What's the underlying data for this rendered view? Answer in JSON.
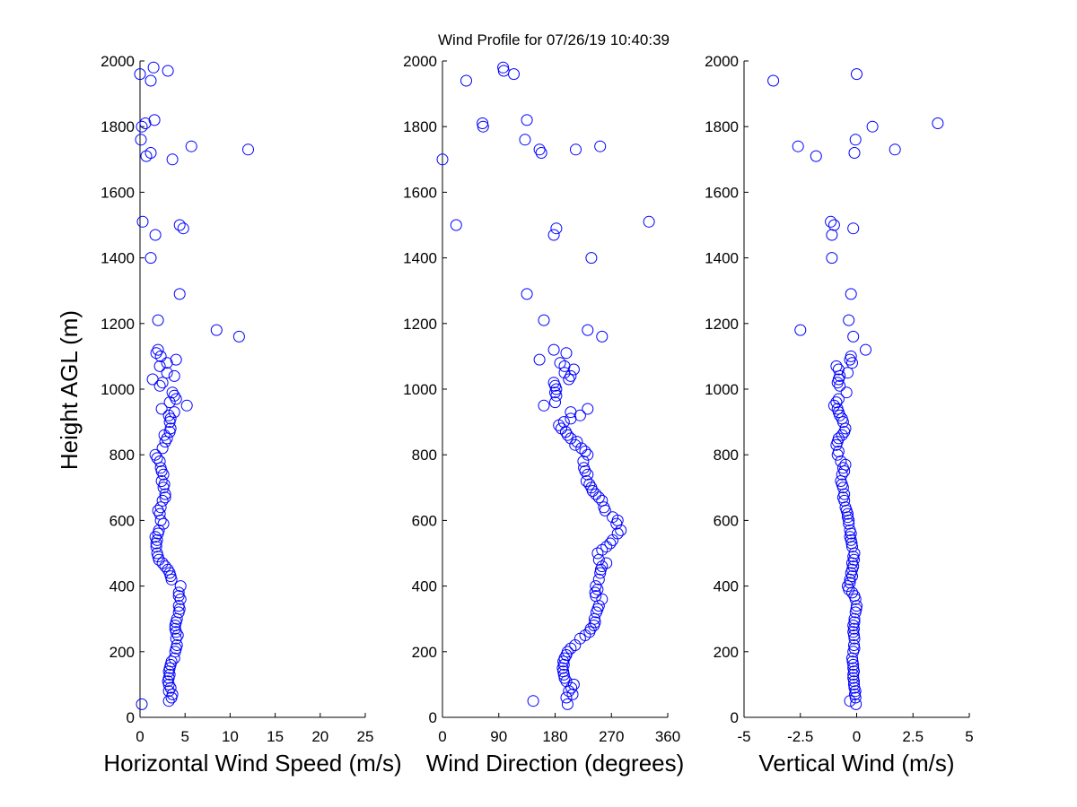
{
  "title": "Wind Profile for  07/26/19 10:40:39",
  "ylabel": "Height AGL (m)",
  "marker_color": "#0000ff",
  "chart_data": [
    {
      "type": "scatter",
      "xlabel": "Horizontal Wind Speed (m/s)",
      "ylabel": "Height AGL (m)",
      "xlim": [
        0,
        25
      ],
      "ylim": [
        0,
        2000
      ],
      "xticks": [
        "0",
        "5",
        "10",
        "15",
        "20",
        "25"
      ],
      "yticks": [
        "0",
        "200",
        "400",
        "600",
        "800",
        "1000",
        "1200",
        "1400",
        "1600",
        "1800",
        "2000"
      ],
      "grid": false,
      "points": [
        [
          0.2,
          40
        ],
        [
          3.2,
          50
        ],
        [
          3.5,
          60
        ],
        [
          3.6,
          70
        ],
        [
          3.2,
          80
        ],
        [
          3.4,
          90
        ],
        [
          3.2,
          100
        ],
        [
          3.1,
          110
        ],
        [
          3.2,
          120
        ],
        [
          3.3,
          130
        ],
        [
          3.2,
          140
        ],
        [
          3.3,
          150
        ],
        [
          3.4,
          160
        ],
        [
          3.5,
          170
        ],
        [
          3.8,
          180
        ],
        [
          3.9,
          200
        ],
        [
          4.0,
          210
        ],
        [
          4.1,
          220
        ],
        [
          4.0,
          240
        ],
        [
          4.2,
          250
        ],
        [
          4.0,
          260
        ],
        [
          3.9,
          270
        ],
        [
          3.9,
          280
        ],
        [
          4.0,
          290
        ],
        [
          4.1,
          300
        ],
        [
          4.3,
          320
        ],
        [
          4.4,
          330
        ],
        [
          4.3,
          340
        ],
        [
          4.5,
          360
        ],
        [
          4.3,
          370
        ],
        [
          4.3,
          380
        ],
        [
          4.5,
          400
        ],
        [
          3.5,
          420
        ],
        [
          3.4,
          430
        ],
        [
          3.3,
          440
        ],
        [
          3.1,
          450
        ],
        [
          2.8,
          460
        ],
        [
          2.5,
          470
        ],
        [
          2.1,
          480
        ],
        [
          2.0,
          490
        ],
        [
          1.9,
          500
        ],
        [
          1.8,
          520
        ],
        [
          1.8,
          530
        ],
        [
          1.9,
          540
        ],
        [
          1.7,
          550
        ],
        [
          2.0,
          560
        ],
        [
          2.1,
          570
        ],
        [
          2.6,
          590
        ],
        [
          2.3,
          600
        ],
        [
          2.2,
          620
        ],
        [
          2.0,
          630
        ],
        [
          2.3,
          640
        ],
        [
          2.5,
          660
        ],
        [
          2.8,
          670
        ],
        [
          2.8,
          680
        ],
        [
          2.6,
          700
        ],
        [
          2.7,
          710
        ],
        [
          2.4,
          720
        ],
        [
          2.6,
          740
        ],
        [
          2.4,
          750
        ],
        [
          2.3,
          760
        ],
        [
          2.2,
          780
        ],
        [
          1.9,
          790
        ],
        [
          1.7,
          800
        ],
        [
          2.5,
          820
        ],
        [
          2.8,
          840
        ],
        [
          3.0,
          850
        ],
        [
          2.7,
          860
        ],
        [
          3.3,
          870
        ],
        [
          3.4,
          880
        ],
        [
          3.3,
          900
        ],
        [
          3.4,
          910
        ],
        [
          3.2,
          920
        ],
        [
          3.8,
          930
        ],
        [
          2.4,
          940
        ],
        [
          5.2,
          950
        ],
        [
          3.3,
          960
        ],
        [
          4.0,
          970
        ],
        [
          3.8,
          980
        ],
        [
          3.6,
          990
        ],
        [
          2.2,
          1010
        ],
        [
          2.5,
          1020
        ],
        [
          1.4,
          1030
        ],
        [
          3.8,
          1040
        ],
        [
          3.0,
          1050
        ],
        [
          2.2,
          1070
        ],
        [
          3.0,
          1080
        ],
        [
          4.0,
          1090
        ],
        [
          2.3,
          1100
        ],
        [
          1.8,
          1110
        ],
        [
          2.0,
          1120
        ],
        [
          11.0,
          1160
        ],
        [
          8.5,
          1180
        ],
        [
          2.0,
          1210
        ],
        [
          4.4,
          1290
        ],
        [
          1.2,
          1400
        ],
        [
          1.7,
          1470
        ],
        [
          4.8,
          1490
        ],
        [
          4.4,
          1500
        ],
        [
          0.3,
          1510
        ],
        [
          3.6,
          1700
        ],
        [
          0.7,
          1710
        ],
        [
          1.2,
          1720
        ],
        [
          12.0,
          1730
        ],
        [
          5.7,
          1740
        ],
        [
          0.1,
          1760
        ],
        [
          0.2,
          1800
        ],
        [
          0.6,
          1810
        ],
        [
          1.6,
          1820
        ],
        [
          1.2,
          1940
        ],
        [
          0.0,
          1960
        ],
        [
          3.1,
          1970
        ],
        [
          1.5,
          1980
        ]
      ]
    },
    {
      "type": "scatter",
      "xlabel": "Wind Direction (degrees)",
      "ylabel": "",
      "xlim": [
        0,
        360
      ],
      "ylim": [
        0,
        2000
      ],
      "xticks": [
        "0",
        "90",
        "180",
        "270",
        "360"
      ],
      "yticks": [
        "0",
        "200",
        "400",
        "600",
        "800",
        "1000",
        "1200",
        "1400",
        "1600",
        "1800",
        "2000"
      ],
      "grid": false,
      "points": [
        [
          200,
          40
        ],
        [
          145,
          50
        ],
        [
          198,
          60
        ],
        [
          208,
          70
        ],
        [
          202,
          80
        ],
        [
          206,
          90
        ],
        [
          210,
          100
        ],
        [
          198,
          110
        ],
        [
          195,
          120
        ],
        [
          194,
          130
        ],
        [
          193,
          140
        ],
        [
          192,
          150
        ],
        [
          194,
          160
        ],
        [
          193,
          170
        ],
        [
          195,
          180
        ],
        [
          198,
          190
        ],
        [
          200,
          200
        ],
        [
          205,
          210
        ],
        [
          212,
          220
        ],
        [
          220,
          240
        ],
        [
          228,
          250
        ],
        [
          235,
          260
        ],
        [
          237,
          270
        ],
        [
          242,
          280
        ],
        [
          244,
          290
        ],
        [
          243,
          300
        ],
        [
          246,
          320
        ],
        [
          248,
          330
        ],
        [
          250,
          340
        ],
        [
          255,
          360
        ],
        [
          245,
          370
        ],
        [
          244,
          380
        ],
        [
          248,
          390
        ],
        [
          245,
          400
        ],
        [
          250,
          420
        ],
        [
          252,
          440
        ],
        [
          253,
          450
        ],
        [
          255,
          460
        ],
        [
          262,
          470
        ],
        [
          250,
          480
        ],
        [
          248,
          500
        ],
        [
          255,
          510
        ],
        [
          262,
          520
        ],
        [
          268,
          530
        ],
        [
          272,
          540
        ],
        [
          280,
          560
        ],
        [
          285,
          570
        ],
        [
          278,
          590
        ],
        [
          280,
          600
        ],
        [
          272,
          610
        ],
        [
          260,
          630
        ],
        [
          258,
          640
        ],
        [
          255,
          660
        ],
        [
          250,
          670
        ],
        [
          245,
          680
        ],
        [
          240,
          690
        ],
        [
          238,
          700
        ],
        [
          235,
          710
        ],
        [
          230,
          720
        ],
        [
          232,
          740
        ],
        [
          228,
          750
        ],
        [
          226,
          760
        ],
        [
          225,
          780
        ],
        [
          232,
          800
        ],
        [
          228,
          810
        ],
        [
          222,
          820
        ],
        [
          212,
          830
        ],
        [
          215,
          840
        ],
        [
          205,
          850
        ],
        [
          200,
          860
        ],
        [
          197,
          870
        ],
        [
          190,
          880
        ],
        [
          186,
          890
        ],
        [
          194,
          900
        ],
        [
          205,
          910
        ],
        [
          220,
          920
        ],
        [
          205,
          930
        ],
        [
          232,
          940
        ],
        [
          162,
          950
        ],
        [
          180,
          960
        ],
        [
          182,
          980
        ],
        [
          180,
          990
        ],
        [
          182,
          1000
        ],
        [
          180,
          1010
        ],
        [
          178,
          1020
        ],
        [
          202,
          1030
        ],
        [
          205,
          1040
        ],
        [
          195,
          1050
        ],
        [
          210,
          1060
        ],
        [
          195,
          1070
        ],
        [
          188,
          1080
        ],
        [
          155,
          1090
        ],
        [
          198,
          1110
        ],
        [
          178,
          1120
        ],
        [
          255,
          1160
        ],
        [
          232,
          1180
        ],
        [
          162,
          1210
        ],
        [
          135,
          1290
        ],
        [
          238,
          1400
        ],
        [
          178,
          1470
        ],
        [
          182,
          1490
        ],
        [
          22,
          1500
        ],
        [
          330,
          1510
        ],
        [
          0,
          1700
        ],
        [
          158,
          1720
        ],
        [
          213,
          1730
        ],
        [
          155,
          1730
        ],
        [
          252,
          1740
        ],
        [
          132,
          1760
        ],
        [
          65,
          1800
        ],
        [
          64,
          1810
        ],
        [
          135,
          1820
        ],
        [
          38,
          1940
        ],
        [
          114,
          1960
        ],
        [
          98,
          1970
        ],
        [
          97,
          1980
        ]
      ]
    },
    {
      "type": "scatter",
      "xlabel": "Vertical Wind (m/s)",
      "ylabel": "",
      "xlim": [
        -5,
        5
      ],
      "ylim": [
        0,
        2000
      ],
      "xticks": [
        "-5",
        "-2.5",
        "0",
        "2.5",
        "5"
      ],
      "yticks": [
        "0",
        "200",
        "400",
        "600",
        "800",
        "1000",
        "1200",
        "1400",
        "1600",
        "1800",
        "2000"
      ],
      "grid": false,
      "points": [
        [
          -0.03,
          40
        ],
        [
          -0.3,
          50
        ],
        [
          -0.05,
          60
        ],
        [
          -0.08,
          70
        ],
        [
          -0.05,
          80
        ],
        [
          -0.1,
          90
        ],
        [
          -0.12,
          100
        ],
        [
          -0.12,
          110
        ],
        [
          -0.15,
          120
        ],
        [
          -0.15,
          130
        ],
        [
          -0.12,
          140
        ],
        [
          -0.15,
          150
        ],
        [
          -0.15,
          160
        ],
        [
          -0.18,
          170
        ],
        [
          -0.2,
          180
        ],
        [
          -0.15,
          200
        ],
        [
          -0.1,
          210
        ],
        [
          -0.12,
          220
        ],
        [
          -0.1,
          240
        ],
        [
          -0.12,
          250
        ],
        [
          -0.15,
          260
        ],
        [
          -0.12,
          270
        ],
        [
          -0.15,
          280
        ],
        [
          -0.1,
          290
        ],
        [
          -0.1,
          300
        ],
        [
          -0.05,
          320
        ],
        [
          -0.02,
          330
        ],
        [
          0.0,
          340
        ],
        [
          -0.05,
          360
        ],
        [
          -0.1,
          370
        ],
        [
          -0.2,
          380
        ],
        [
          -0.35,
          390
        ],
        [
          -0.4,
          400
        ],
        [
          -0.3,
          410
        ],
        [
          -0.3,
          420
        ],
        [
          -0.2,
          430
        ],
        [
          -0.25,
          440
        ],
        [
          -0.2,
          450
        ],
        [
          -0.15,
          460
        ],
        [
          -0.2,
          470
        ],
        [
          -0.12,
          480
        ],
        [
          -0.15,
          490
        ],
        [
          -0.1,
          500
        ],
        [
          -0.2,
          520
        ],
        [
          -0.22,
          530
        ],
        [
          -0.25,
          540
        ],
        [
          -0.3,
          550
        ],
        [
          -0.25,
          560
        ],
        [
          -0.3,
          570
        ],
        [
          -0.35,
          590
        ],
        [
          -0.35,
          600
        ],
        [
          -0.4,
          610
        ],
        [
          -0.4,
          620
        ],
        [
          -0.45,
          630
        ],
        [
          -0.5,
          640
        ],
        [
          -0.55,
          660
        ],
        [
          -0.6,
          670
        ],
        [
          -0.55,
          680
        ],
        [
          -0.6,
          700
        ],
        [
          -0.65,
          710
        ],
        [
          -0.7,
          720
        ],
        [
          -0.65,
          740
        ],
        [
          -0.55,
          750
        ],
        [
          -0.6,
          760
        ],
        [
          -0.5,
          770
        ],
        [
          -0.7,
          780
        ],
        [
          -0.85,
          800
        ],
        [
          -0.8,
          810
        ],
        [
          -0.9,
          830
        ],
        [
          -0.85,
          840
        ],
        [
          -0.8,
          850
        ],
        [
          -0.65,
          860
        ],
        [
          -0.55,
          870
        ],
        [
          -0.5,
          880
        ],
        [
          -0.6,
          900
        ],
        [
          -0.65,
          910
        ],
        [
          -0.75,
          920
        ],
        [
          -0.8,
          930
        ],
        [
          -0.85,
          940
        ],
        [
          -1.0,
          950
        ],
        [
          -0.9,
          960
        ],
        [
          -0.8,
          970
        ],
        [
          -0.45,
          990
        ],
        [
          -0.75,
          1010
        ],
        [
          -0.85,
          1020
        ],
        [
          -0.8,
          1030
        ],
        [
          -0.75,
          1040
        ],
        [
          -0.4,
          1050
        ],
        [
          -0.8,
          1060
        ],
        [
          -0.9,
          1070
        ],
        [
          -0.2,
          1080
        ],
        [
          -0.3,
          1090
        ],
        [
          -0.25,
          1100
        ],
        [
          0.4,
          1120
        ],
        [
          -0.15,
          1160
        ],
        [
          -2.5,
          1180
        ],
        [
          -0.35,
          1210
        ],
        [
          -0.25,
          1290
        ],
        [
          -1.1,
          1400
        ],
        [
          -1.1,
          1470
        ],
        [
          -0.15,
          1490
        ],
        [
          -1.0,
          1500
        ],
        [
          -1.15,
          1510
        ],
        [
          -1.8,
          1710
        ],
        [
          -0.1,
          1720
        ],
        [
          1.7,
          1730
        ],
        [
          -2.6,
          1740
        ],
        [
          -0.05,
          1760
        ],
        [
          0.7,
          1800
        ],
        [
          3.6,
          1810
        ],
        [
          -3.7,
          1940
        ],
        [
          0.0,
          1960
        ]
      ]
    }
  ]
}
